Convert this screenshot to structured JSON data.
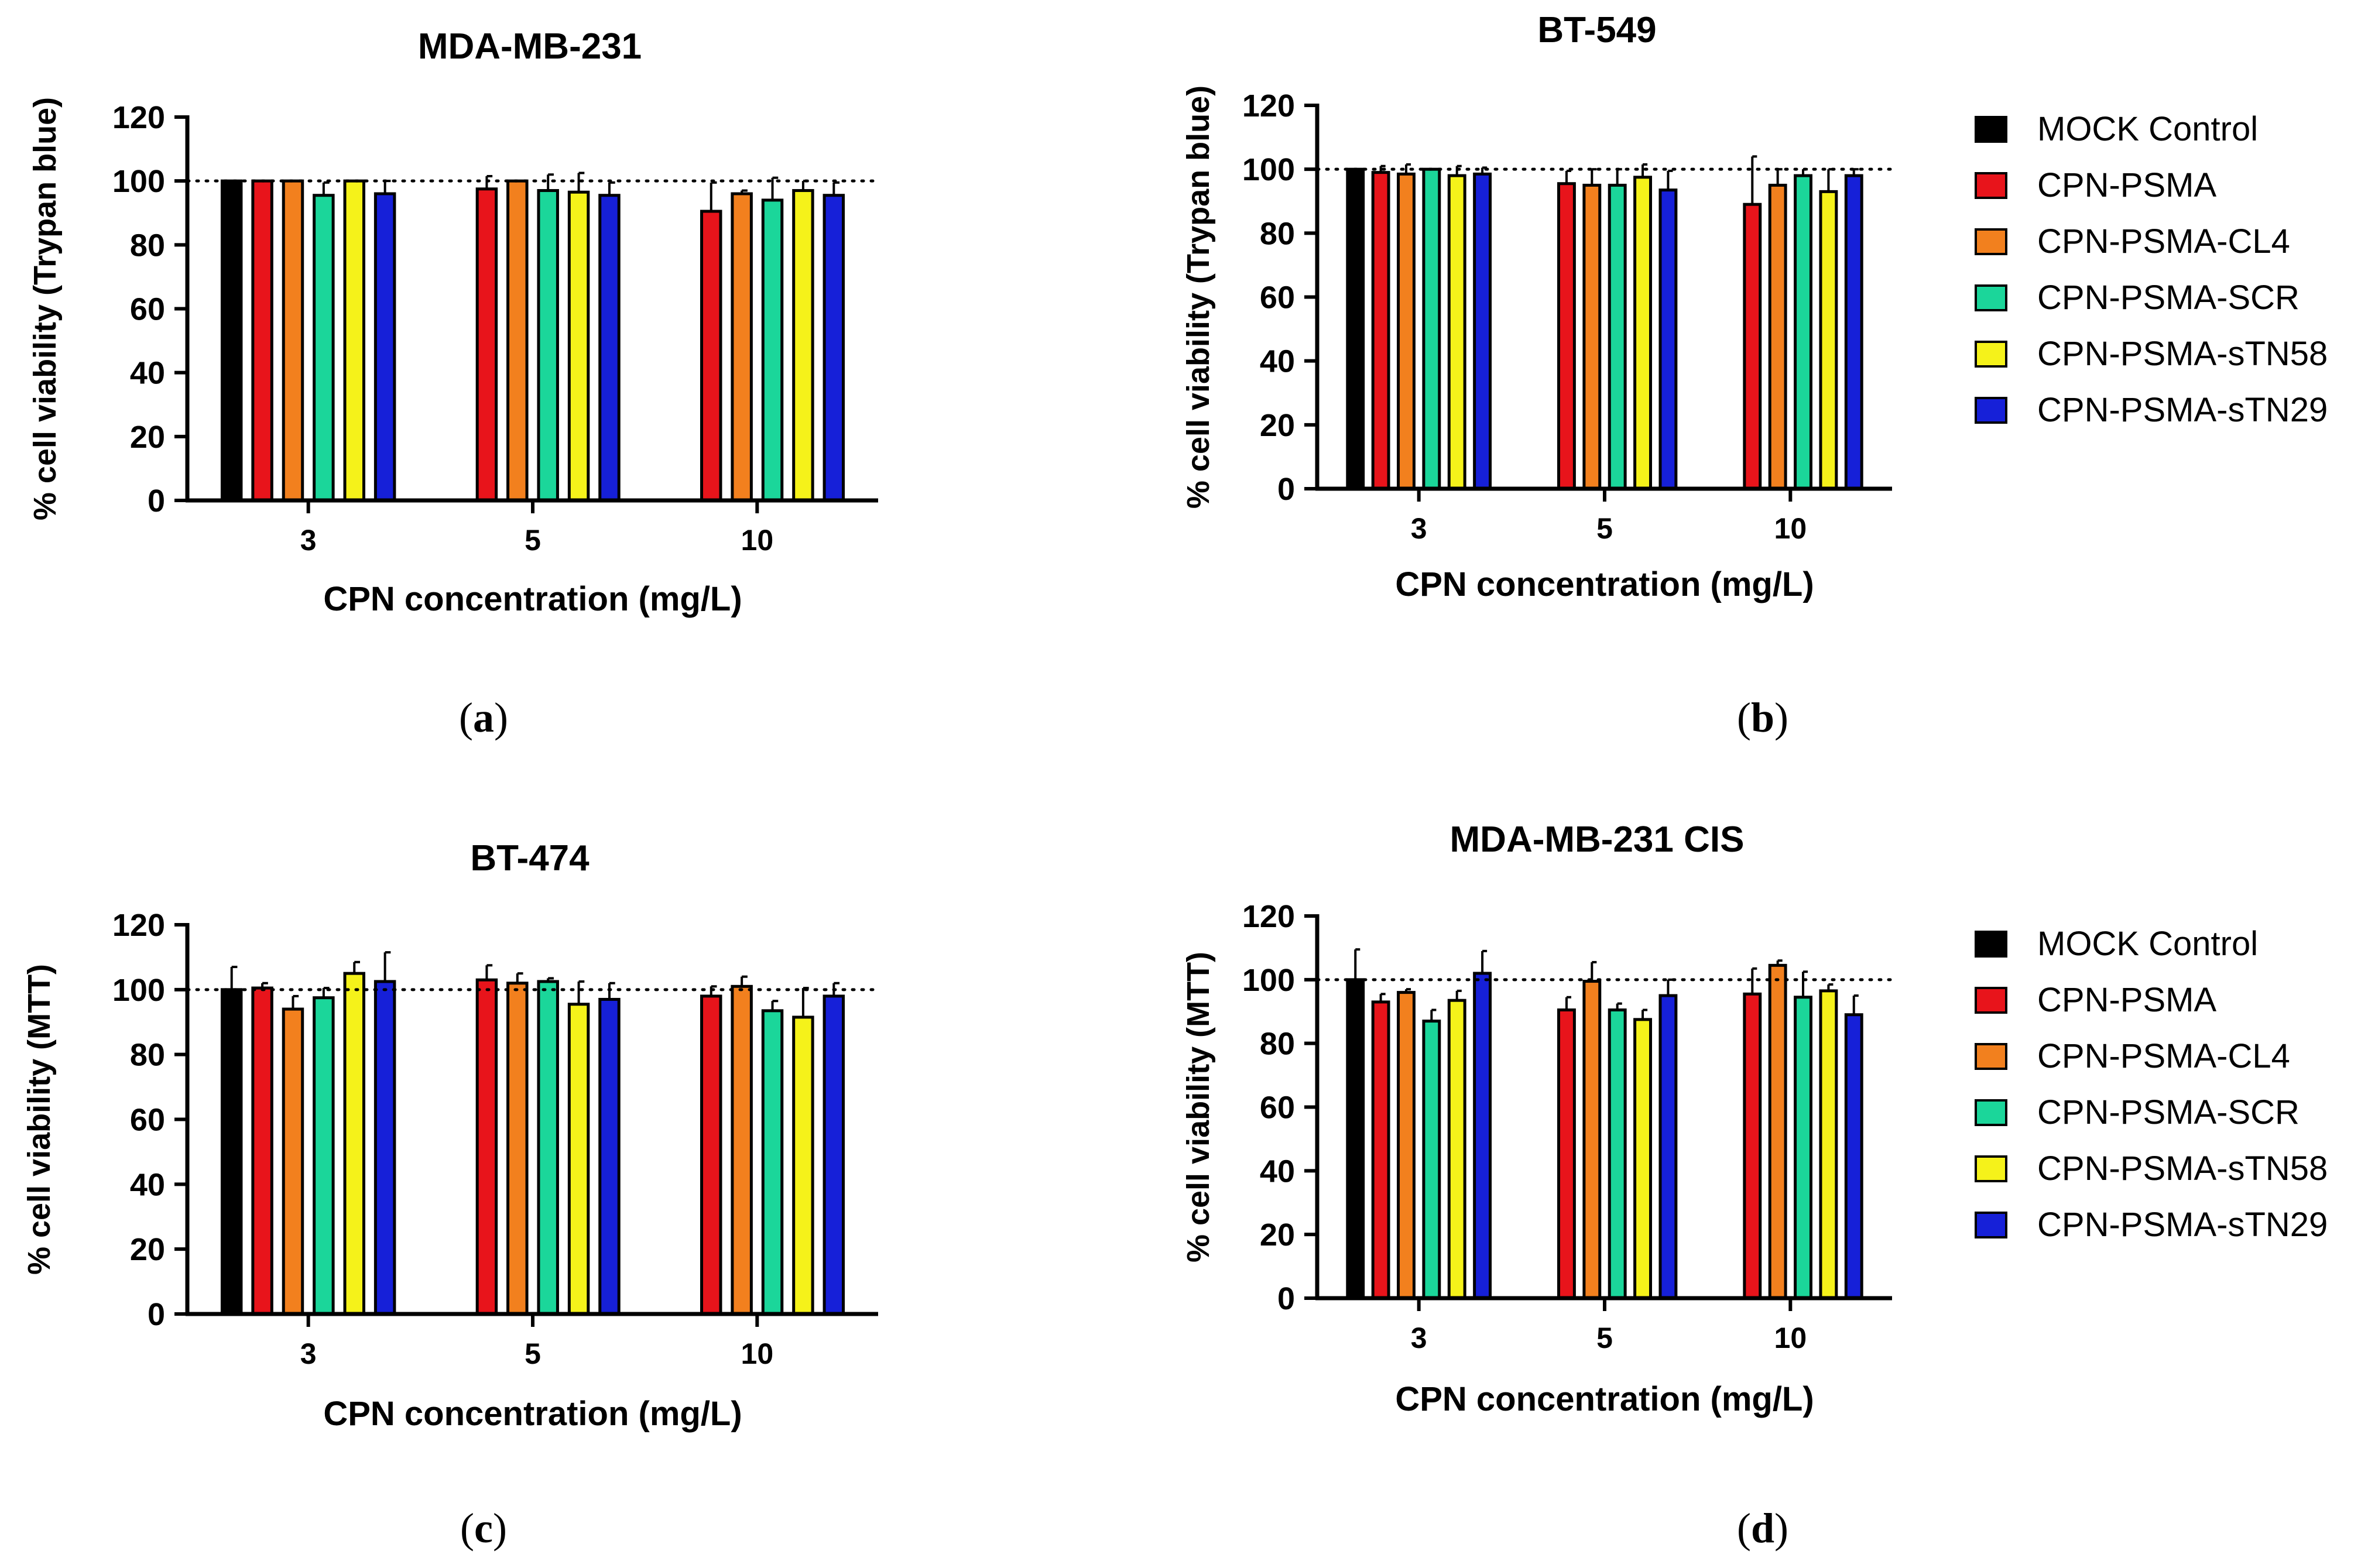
{
  "series_colors": [
    "#000000",
    "#e8141b",
    "#f2801e",
    "#1bd69a",
    "#f5f21a",
    "#1620d8"
  ],
  "legend": [
    "MOCK Control",
    "CPN-PSMA",
    "CPN-PSMA-CL4",
    "CPN-PSMA-SCR",
    "CPN-PSMA-sTN58",
    "CPN-PSMA-sTN29"
  ],
  "captions": [
    {
      "open": "(",
      "letter": "a",
      "close": ")"
    },
    {
      "open": "(",
      "letter": "b",
      "close": ")"
    },
    {
      "open": "(",
      "letter": "c",
      "close": ")"
    },
    {
      "open": "(",
      "letter": "d",
      "close": ")"
    }
  ],
  "chart_data": [
    {
      "type": "bar",
      "title": "MDA-MB-231",
      "xlabel": "CPN concentration (mg/L)",
      "ylabel": "% cell viability (Trypan blue)",
      "ylim": [
        0,
        120
      ],
      "yticks": [
        0,
        20,
        40,
        60,
        80,
        100,
        120
      ],
      "reference_line": 100,
      "categories": [
        "3",
        "5",
        "10"
      ],
      "series": [
        {
          "name": "MOCK Control",
          "values": [
            100,
            null,
            null
          ],
          "errors": [
            0,
            null,
            null
          ]
        },
        {
          "name": "CPN-PSMA",
          "values": [
            100,
            97.5,
            90.5
          ],
          "errors": [
            0,
            4,
            9
          ]
        },
        {
          "name": "CPN-PSMA-CL4",
          "values": [
            100,
            100,
            96
          ],
          "errors": [
            0,
            0,
            1
          ]
        },
        {
          "name": "CPN-PSMA-SCR",
          "values": [
            95.5,
            97,
            94
          ],
          "errors": [
            4,
            5,
            7
          ]
        },
        {
          "name": "CPN-PSMA-sTN58",
          "values": [
            100,
            96.5,
            97
          ],
          "errors": [
            0,
            6,
            3
          ]
        },
        {
          "name": "CPN-PSMA-sTN29",
          "values": [
            96,
            95.5,
            95.5
          ],
          "errors": [
            4,
            4,
            4
          ]
        }
      ]
    },
    {
      "type": "bar",
      "title": "BT-549",
      "xlabel": "CPN concentration (mg/L)",
      "ylabel": "% cell viability (Trypan blue)",
      "ylim": [
        0,
        120
      ],
      "yticks": [
        0,
        20,
        40,
        60,
        80,
        100,
        120
      ],
      "reference_line": 100,
      "categories": [
        "3",
        "5",
        "10"
      ],
      "series": [
        {
          "name": "MOCK Control",
          "values": [
            100,
            null,
            null
          ],
          "errors": [
            0,
            null,
            null
          ]
        },
        {
          "name": "CPN-PSMA",
          "values": [
            99,
            95.5,
            89
          ],
          "errors": [
            2,
            4,
            15
          ]
        },
        {
          "name": "CPN-PSMA-CL4",
          "values": [
            98.5,
            95,
            95
          ],
          "errors": [
            3,
            5,
            5
          ]
        },
        {
          "name": "CPN-PSMA-SCR",
          "values": [
            100,
            95,
            98
          ],
          "errors": [
            0,
            5,
            2
          ]
        },
        {
          "name": "CPN-PSMA-sTN58",
          "values": [
            98,
            97.5,
            93
          ],
          "errors": [
            3,
            4,
            7
          ]
        },
        {
          "name": "CPN-PSMA-sTN29",
          "values": [
            98.5,
            93.5,
            98
          ],
          "errors": [
            2,
            6,
            2
          ]
        }
      ]
    },
    {
      "type": "bar",
      "title": "BT-474",
      "xlabel": "CPN concentration (mg/L)",
      "ylabel": "% cell viability (MTT)",
      "ylim": [
        0,
        120
      ],
      "yticks": [
        0,
        20,
        40,
        60,
        80,
        100,
        120
      ],
      "reference_line": 100,
      "categories": [
        "3",
        "5",
        "10"
      ],
      "series": [
        {
          "name": "MOCK Control",
          "values": [
            100,
            null,
            null
          ],
          "errors": [
            7,
            null,
            null
          ]
        },
        {
          "name": "CPN-PSMA",
          "values": [
            100.5,
            103,
            98
          ],
          "errors": [
            1.5,
            4.5,
            3
          ]
        },
        {
          "name": "CPN-PSMA-CL4",
          "values": [
            94,
            102,
            101
          ],
          "errors": [
            4,
            3,
            3
          ]
        },
        {
          "name": "CPN-PSMA-SCR",
          "values": [
            97.5,
            102.5,
            93.5
          ],
          "errors": [
            3,
            1,
            3
          ]
        },
        {
          "name": "CPN-PSMA-sTN58",
          "values": [
            105,
            95.5,
            91.5
          ],
          "errors": [
            3.5,
            7,
            9
          ]
        },
        {
          "name": "CPN-PSMA-sTN29",
          "values": [
            102.5,
            97,
            98
          ],
          "errors": [
            9,
            5,
            4
          ]
        }
      ]
    },
    {
      "type": "bar",
      "title": "MDA-MB-231 CIS",
      "xlabel": "CPN concentration (mg/L)",
      "ylabel": "% cell viability (MTT)",
      "ylim": [
        0,
        120
      ],
      "yticks": [
        0,
        20,
        40,
        60,
        80,
        100,
        120
      ],
      "reference_line": 100,
      "categories": [
        "3",
        "5",
        "10"
      ],
      "series": [
        {
          "name": "MOCK Control",
          "values": [
            100,
            null,
            null
          ],
          "errors": [
            9.5,
            null,
            null
          ]
        },
        {
          "name": "CPN-PSMA",
          "values": [
            93,
            90.5,
            95.5
          ],
          "errors": [
            2.5,
            4,
            8
          ]
        },
        {
          "name": "CPN-PSMA-CL4",
          "values": [
            96,
            99.5,
            104.5
          ],
          "errors": [
            1,
            6,
            1.5
          ]
        },
        {
          "name": "CPN-PSMA-SCR",
          "values": [
            87,
            90.5,
            94.5
          ],
          "errors": [
            3.5,
            2,
            8
          ]
        },
        {
          "name": "CPN-PSMA-sTN58",
          "values": [
            93.5,
            87.5,
            96.5
          ],
          "errors": [
            3,
            3,
            2
          ]
        },
        {
          "name": "CPN-PSMA-sTN29",
          "values": [
            102,
            95,
            89
          ],
          "errors": [
            7,
            5,
            6
          ]
        }
      ]
    }
  ]
}
